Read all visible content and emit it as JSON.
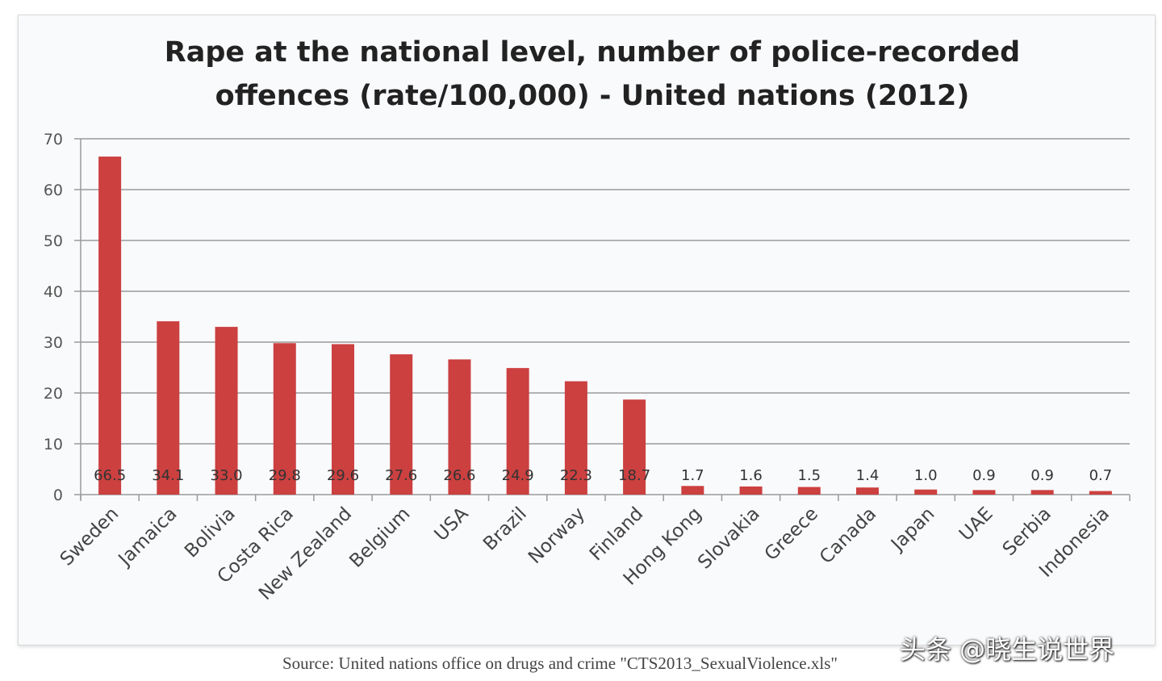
{
  "chart_data": {
    "type": "bar",
    "title": "Rape at the national level, number of police-recorded offences (rate/100,000) - United nations (2012)",
    "title_lines": [
      "Rape at the national level, number of police-recorded",
      "offences (rate/100,000) - United nations (2012)"
    ],
    "categories": [
      "Sweden",
      "Jamaica",
      "Bolivia",
      "Costa Rica",
      "New Zealand",
      "Belgium",
      "USA",
      "Brazil",
      "Norway",
      "Finland",
      "Hong Kong",
      "Slovakia",
      "Greece",
      "Canada",
      "Japan",
      "UAE",
      "Serbia",
      "Indonesia"
    ],
    "values": [
      66.5,
      34.1,
      33.0,
      29.8,
      29.6,
      27.6,
      26.6,
      24.9,
      22.3,
      18.7,
      1.7,
      1.6,
      1.5,
      1.4,
      1.0,
      0.9,
      0.9,
      0.7
    ],
    "value_labels": [
      "66.5",
      "34.1",
      "33.0",
      "29.8",
      "29.6",
      "27.6",
      "26.6",
      "24.9",
      "22.3",
      "18.7",
      "1.7",
      "1.6",
      "1.5",
      "1.4",
      "1.0",
      "0.9",
      "0.9",
      "0.7"
    ],
    "xlabel": "",
    "ylabel": "",
    "ylim": [
      0,
      70
    ],
    "yticks": [
      0,
      10,
      20,
      30,
      40,
      50,
      60,
      70
    ],
    "grid": true,
    "legend": "none",
    "bar_color": "#cc4040"
  },
  "source": "Source: United nations office on drugs and crime \"CTS2013_SexualViolence.xls\"",
  "watermark": "头条 @晓生说世界"
}
